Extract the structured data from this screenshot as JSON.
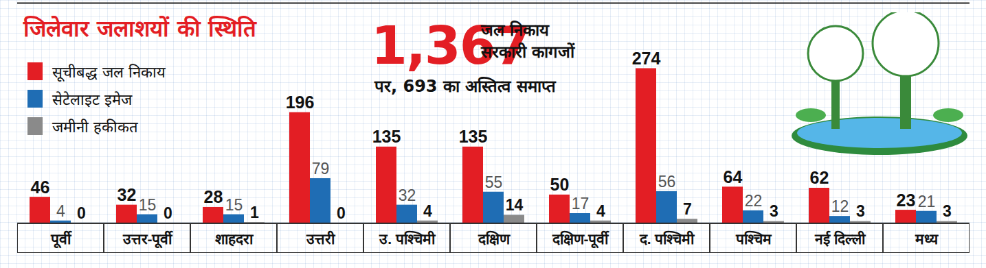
{
  "chart_data": {
    "type": "bar",
    "title": "जिलेवार जलाशयों की स्थिति",
    "annotations": [
      "1,367",
      "जल निकाय",
      "सरकारी कागजों",
      "पर, 693 का अस्तित्व समाप्त"
    ],
    "categories": [
      "पूर्वी",
      "उत्तर-पूर्वी",
      "शाहदरा",
      "उत्तरी",
      "उ. पश्चिमी",
      "दक्षिण",
      "दक्षिण-पूर्वी",
      "द. पश्चिमी",
      "पश्चिम",
      "नई दिल्ली",
      "मध्य"
    ],
    "series": [
      {
        "name": "सूचीबद्ध जल निकाय",
        "color": "#e31e24",
        "values": [
          46,
          32,
          28,
          196,
          135,
          135,
          50,
          274,
          64,
          62,
          23
        ]
      },
      {
        "name": "सेटेलाइट इमेज",
        "color": "#1f6db4",
        "values": [
          4,
          15,
          15,
          79,
          32,
          55,
          17,
          56,
          22,
          12,
          21
        ]
      },
      {
        "name": "जमीनी हकीकत",
        "color": "#8a8a8a",
        "values": [
          0,
          0,
          1,
          0,
          4,
          14,
          4,
          7,
          3,
          3,
          3
        ]
      }
    ],
    "ylim": [
      0,
      390
    ],
    "tick_labels": "x",
    "data_labels": true,
    "legend": "upper left"
  }
}
